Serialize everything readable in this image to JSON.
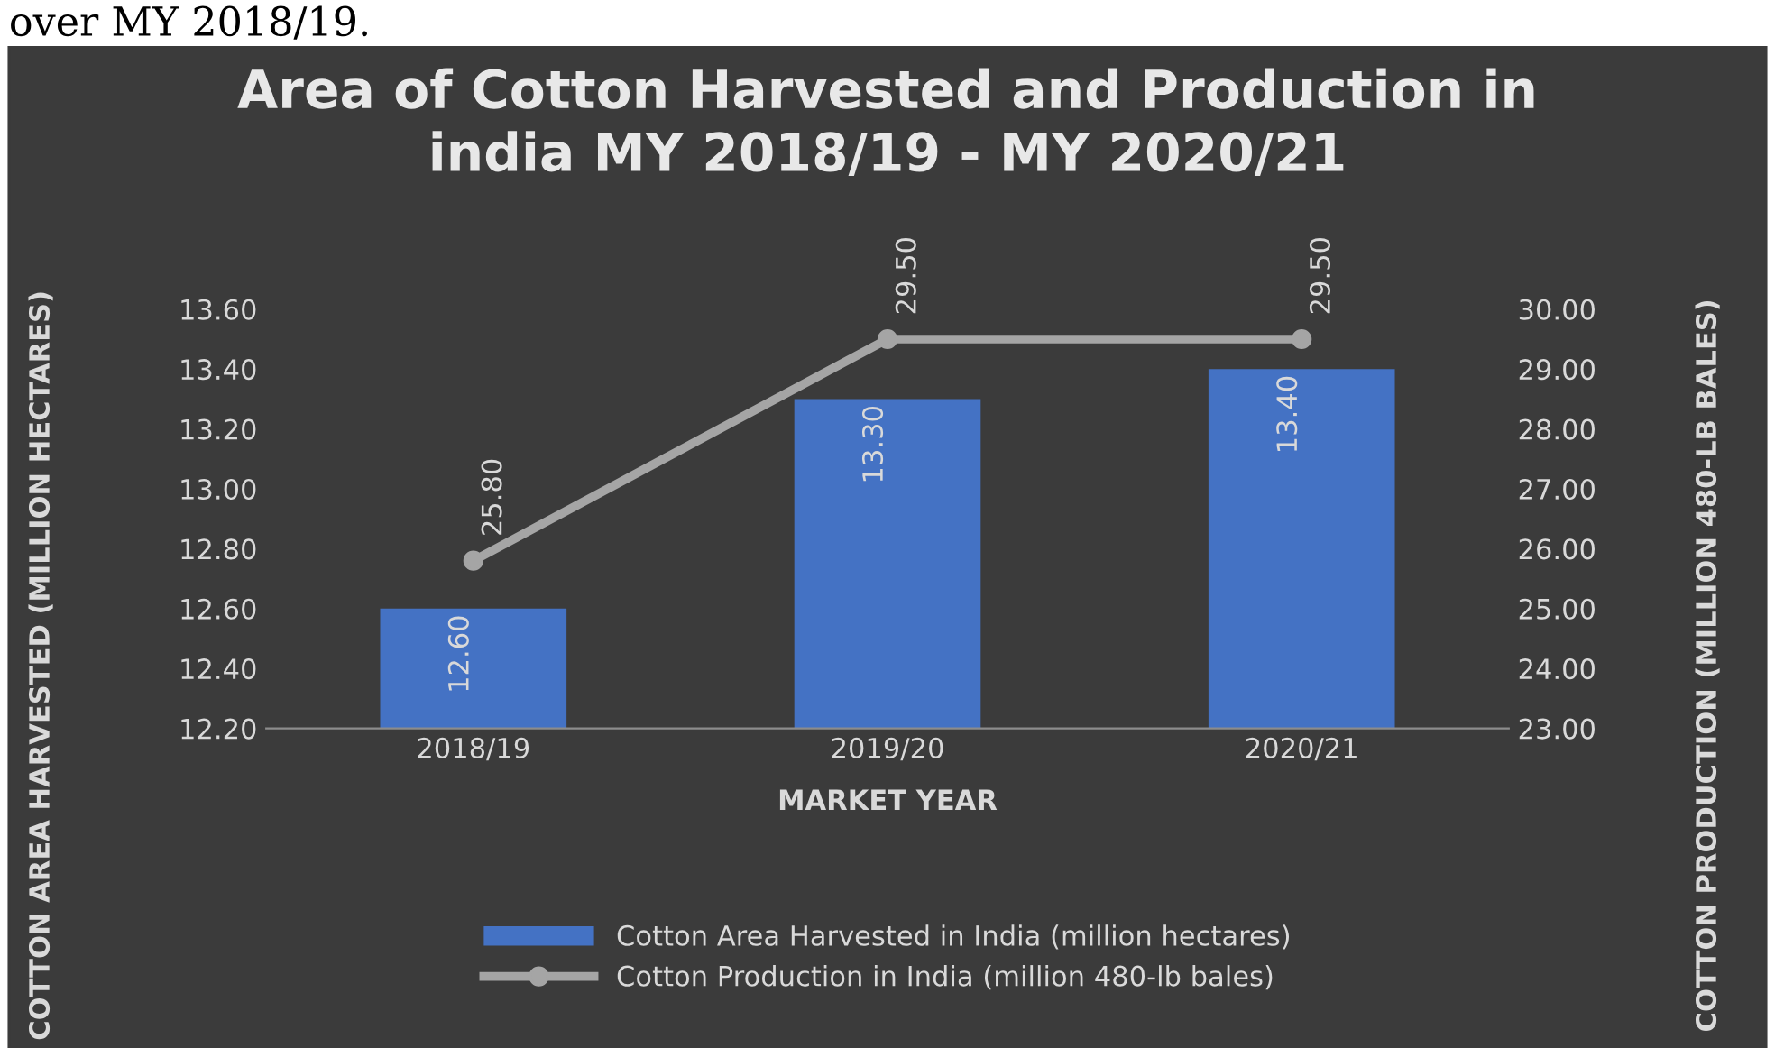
{
  "chart_data": {
    "type": "bar",
    "title": "Area of Cotton Harvested and Production in\nindia MY 2018/19 - MY 2020/21",
    "xlabel": "MARKET YEAR",
    "ylabel": "COTTON AREA HARVESTED (MILLION HECTARES)",
    "y2label": "COTTON PRODUCTION (MILLION 480-LB BALES)",
    "annotations": [
      "over MY 2018/19."
    ],
    "categories": [
      "2018/19",
      "2019/20",
      "2020/21"
    ],
    "series": [
      {
        "name": "Cotton Area Harvested in India (million hectares)",
        "color": "#4472c4",
        "values": [
          12.6,
          13.3,
          13.4
        ],
        "value_labels": [
          "12.60",
          "13.30",
          "13.40"
        ]
      },
      {
        "name": "Cotton Production in India (million 480-lb bales)",
        "type": "line",
        "axis": "y2",
        "color": "#a5a5a5",
        "marker": "circle",
        "values": [
          25.8,
          29.5,
          29.5
        ],
        "value_labels": [
          "25.80",
          "29.50",
          "29.50"
        ]
      }
    ],
    "ylim": [
      12.2,
      13.6
    ],
    "yticks": [
      {
        "value": 12.2,
        "label": "12.20"
      },
      {
        "value": 12.4,
        "label": "12.40"
      },
      {
        "value": 12.6,
        "label": "12.60"
      },
      {
        "value": 12.8,
        "label": "12.80"
      },
      {
        "value": 13.0,
        "label": "13.00"
      },
      {
        "value": 13.2,
        "label": "13.20"
      },
      {
        "value": 13.4,
        "label": "13.40"
      },
      {
        "value": 13.6,
        "label": "13.60"
      }
    ],
    "y2lim": [
      23,
      30
    ],
    "y2ticks": [
      {
        "value": 23,
        "label": "23.00"
      },
      {
        "value": 24,
        "label": "24.00"
      },
      {
        "value": 25,
        "label": "25.00"
      },
      {
        "value": 26,
        "label": "26.00"
      },
      {
        "value": 27,
        "label": "27.00"
      },
      {
        "value": 28,
        "label": "28.00"
      },
      {
        "value": 29,
        "label": "29.00"
      },
      {
        "value": 30,
        "label": "30.00"
      }
    ],
    "grid": false,
    "legend": "bottom"
  }
}
